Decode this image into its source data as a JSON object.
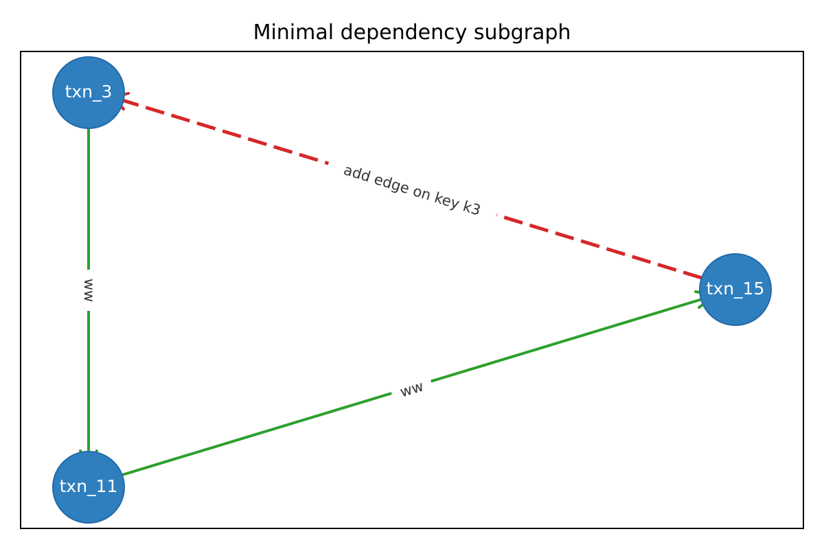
{
  "title": "Minimal dependency subgraph",
  "colors": {
    "node_fill": "#2f7fbf",
    "node_stroke": "#2469a8",
    "edge_ww": "#2ca02c",
    "edge_added": "#d62728"
  },
  "nodes": [
    {
      "id": "txn_3",
      "label": "txn_3"
    },
    {
      "id": "txn_11",
      "label": "txn_11"
    },
    {
      "id": "txn_15",
      "label": "txn_15"
    }
  ],
  "edges": [
    {
      "from": "txn_3",
      "to": "txn_11",
      "label": "ww",
      "style": "solid",
      "color": "#2ca02c"
    },
    {
      "from": "txn_11",
      "to": "txn_15",
      "label": "ww",
      "style": "solid",
      "color": "#2ca02c"
    },
    {
      "from": "txn_15",
      "to": "txn_3",
      "label": "add edge on key k3",
      "style": "dashed",
      "color": "#d62728"
    }
  ]
}
